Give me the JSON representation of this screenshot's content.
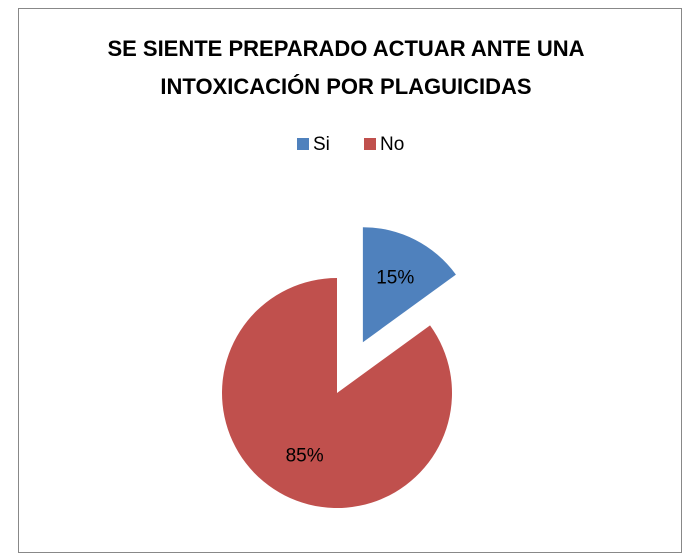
{
  "chart_data": {
    "type": "pie",
    "title": [
      "SE SIENTE PREPARADO ACTUAR ANTE UNA",
      "INTOXICACIÓN POR  PLAGUICIDAS"
    ],
    "categories": [
      "Si",
      "No"
    ],
    "values": [
      15,
      85
    ],
    "value_labels": [
      "15%",
      "85%"
    ],
    "colors": [
      "#4f81bd",
      "#c0504d"
    ],
    "exploded": [
      true,
      false
    ],
    "legend": "top"
  }
}
